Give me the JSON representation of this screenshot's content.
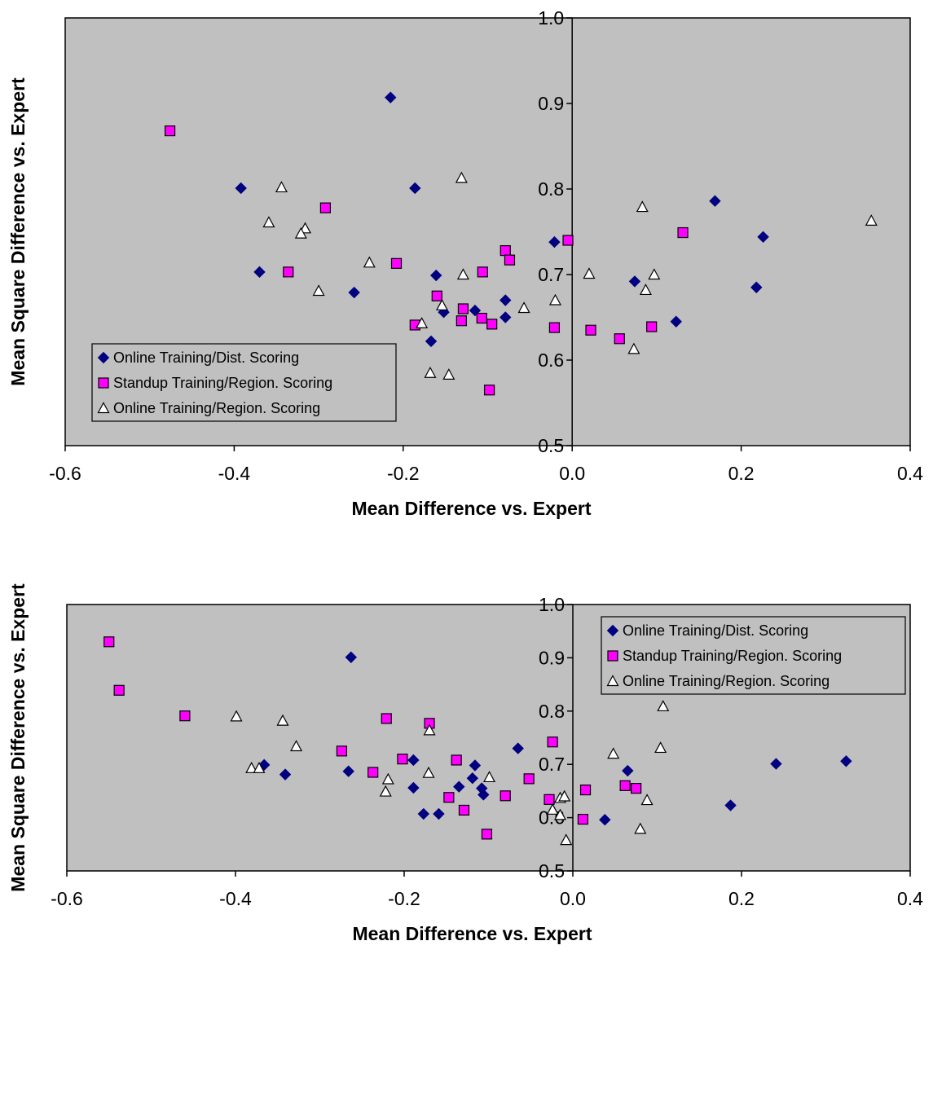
{
  "chart_data": [
    {
      "type": "scatter",
      "title": "",
      "xlabel": "Mean Difference vs. Expert",
      "ylabel": "Mean Square Difference vs. Expert",
      "xlim": [
        -0.6,
        0.4
      ],
      "ylim": [
        0.5,
        1.0
      ],
      "x_ticks": [
        "-0.6",
        "-0.4",
        "-0.2",
        "0.0",
        "0.2",
        "0.4"
      ],
      "y_ticks": [
        "0.5",
        "0.6",
        "0.7",
        "0.8",
        "0.9",
        "1.0"
      ],
      "grid": false,
      "plot_background": "#c0c0c0",
      "legend_position": "bottom-left",
      "series": [
        {
          "name": "Online Training/Dist. Scoring",
          "marker": "diamond",
          "color": "#000080",
          "points": [
            [
              -0.215,
              0.907
            ],
            [
              -0.392,
              0.801
            ],
            [
              -0.186,
              0.801
            ],
            [
              -0.37,
              0.703
            ],
            [
              -0.258,
              0.679
            ],
            [
              -0.161,
              0.699
            ],
            [
              -0.152,
              0.656
            ],
            [
              -0.115,
              0.658
            ],
            [
              -0.167,
              0.622
            ],
            [
              -0.079,
              0.67
            ],
            [
              -0.079,
              0.65
            ],
            [
              -0.021,
              0.738
            ],
            [
              0.169,
              0.786
            ],
            [
              0.226,
              0.744
            ],
            [
              0.074,
              0.692
            ],
            [
              0.218,
              0.685
            ],
            [
              0.123,
              0.645
            ]
          ]
        },
        {
          "name": "Standup Training/Region. Scoring",
          "marker": "square",
          "color": "#ff00ff",
          "points": [
            [
              -0.476,
              0.868
            ],
            [
              -0.292,
              0.778
            ],
            [
              -0.336,
              0.703
            ],
            [
              -0.208,
              0.713
            ],
            [
              -0.186,
              0.641
            ],
            [
              -0.16,
              0.675
            ],
            [
              -0.129,
              0.66
            ],
            [
              -0.131,
              0.646
            ],
            [
              -0.106,
              0.703
            ],
            [
              -0.107,
              0.649
            ],
            [
              -0.095,
              0.642
            ],
            [
              -0.079,
              0.728
            ],
            [
              -0.074,
              0.717
            ],
            [
              -0.098,
              0.565
            ],
            [
              -0.021,
              0.638
            ],
            [
              -0.005,
              0.74
            ],
            [
              0.022,
              0.635
            ],
            [
              0.056,
              0.625
            ],
            [
              0.094,
              0.639
            ],
            [
              0.131,
              0.749
            ]
          ]
        },
        {
          "name": "Online Training/Region. Scoring",
          "marker": "triangle",
          "color": "#ffffff",
          "points": [
            [
              -0.344,
              0.802
            ],
            [
              -0.359,
              0.761
            ],
            [
              -0.316,
              0.754
            ],
            [
              -0.321,
              0.748
            ],
            [
              -0.3,
              0.681
            ],
            [
              -0.24,
              0.714
            ],
            [
              -0.178,
              0.643
            ],
            [
              -0.168,
              0.585
            ],
            [
              -0.154,
              0.664
            ],
            [
              -0.146,
              0.583
            ],
            [
              -0.131,
              0.813
            ],
            [
              -0.129,
              0.7
            ],
            [
              -0.057,
              0.661
            ],
            [
              -0.02,
              0.67
            ],
            [
              0.02,
              0.701
            ],
            [
              0.083,
              0.779
            ],
            [
              0.087,
              0.682
            ],
            [
              0.097,
              0.7
            ],
            [
              0.073,
              0.613
            ],
            [
              0.354,
              0.763
            ]
          ]
        }
      ]
    },
    {
      "type": "scatter",
      "title": "",
      "xlabel": "Mean Difference vs. Expert",
      "ylabel": "Mean Square Difference vs. Expert",
      "xlim": [
        -0.6,
        0.4
      ],
      "ylim": [
        0.5,
        1.0
      ],
      "x_ticks": [
        "-0.6",
        "-0.4",
        "-0.2",
        "0.0",
        "0.2",
        "0.4"
      ],
      "y_ticks": [
        "0.5",
        "0.6",
        "0.7",
        "0.8",
        "0.9",
        "1.0"
      ],
      "grid": false,
      "plot_background": "#c0c0c0",
      "legend_position": "top-right",
      "series": [
        {
          "name": "Online Training/Dist. Scoring",
          "marker": "diamond",
          "color": "#000080",
          "points": [
            [
              -0.263,
              0.901
            ],
            [
              -0.366,
              0.699
            ],
            [
              -0.341,
              0.681
            ],
            [
              -0.266,
              0.687
            ],
            [
              -0.189,
              0.708
            ],
            [
              -0.189,
              0.656
            ],
            [
              -0.177,
              0.607
            ],
            [
              -0.159,
              0.607
            ],
            [
              -0.135,
              0.658
            ],
            [
              -0.119,
              0.674
            ],
            [
              -0.116,
              0.698
            ],
            [
              -0.108,
              0.655
            ],
            [
              -0.106,
              0.643
            ],
            [
              -0.065,
              0.73
            ],
            [
              0.038,
              0.596
            ],
            [
              0.065,
              0.688
            ],
            [
              0.187,
              0.623
            ],
            [
              0.241,
              0.701
            ],
            [
              0.324,
              0.706
            ]
          ]
        },
        {
          "name": "Standup Training/Region. Scoring",
          "marker": "square",
          "color": "#ff00ff",
          "points": [
            [
              -0.55,
              0.93
            ],
            [
              -0.538,
              0.839
            ],
            [
              -0.46,
              0.791
            ],
            [
              -0.274,
              0.725
            ],
            [
              -0.237,
              0.685
            ],
            [
              -0.221,
              0.786
            ],
            [
              -0.202,
              0.71
            ],
            [
              -0.17,
              0.777
            ],
            [
              -0.147,
              0.638
            ],
            [
              -0.138,
              0.708
            ],
            [
              -0.129,
              0.614
            ],
            [
              -0.102,
              0.569
            ],
            [
              -0.08,
              0.641
            ],
            [
              -0.052,
              0.673
            ],
            [
              -0.028,
              0.634
            ],
            [
              -0.024,
              0.742
            ],
            [
              0.012,
              0.597
            ],
            [
              0.015,
              0.652
            ],
            [
              0.062,
              0.66
            ],
            [
              0.075,
              0.655
            ]
          ]
        },
        {
          "name": "Online Training/Region. Scoring",
          "marker": "triangle",
          "color": "#ffffff",
          "points": [
            [
              -0.399,
              0.79
            ],
            [
              -0.344,
              0.782
            ],
            [
              -0.328,
              0.734
            ],
            [
              -0.381,
              0.693
            ],
            [
              -0.372,
              0.693
            ],
            [
              -0.219,
              0.672
            ],
            [
              -0.222,
              0.649
            ],
            [
              -0.171,
              0.684
            ],
            [
              -0.17,
              0.764
            ],
            [
              -0.099,
              0.676
            ],
            [
              -0.024,
              0.615
            ],
            [
              -0.015,
              0.637
            ],
            [
              -0.01,
              0.64
            ],
            [
              -0.015,
              0.605
            ],
            [
              -0.008,
              0.558
            ],
            [
              0.048,
              0.72
            ],
            [
              0.08,
              0.579
            ],
            [
              0.088,
              0.633
            ],
            [
              0.104,
              0.731
            ],
            [
              0.107,
              0.809
            ]
          ]
        }
      ]
    }
  ]
}
